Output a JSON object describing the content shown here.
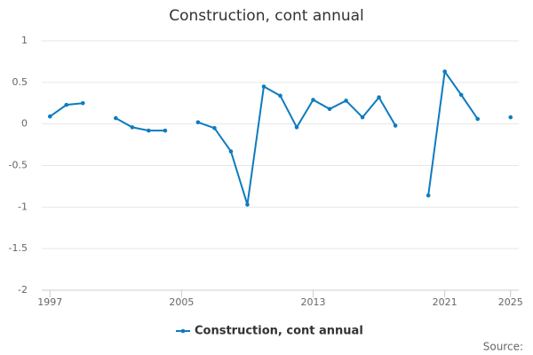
{
  "chart_data": {
    "type": "line",
    "title": "Construction, cont annual",
    "x": [
      1997,
      1998,
      1999,
      2000,
      2001,
      2002,
      2003,
      2004,
      2005,
      2006,
      2007,
      2008,
      2009,
      2010,
      2011,
      2012,
      2013,
      2014,
      2015,
      2016,
      2017,
      2018,
      2019,
      2020,
      2021,
      2022,
      2023,
      2024,
      2025
    ],
    "series": [
      {
        "name": "Construction, cont annual",
        "color": "#0e7bbf",
        "values": [
          0.09,
          0.23,
          0.25,
          null,
          0.07,
          -0.04,
          -0.08,
          -0.08,
          null,
          0.02,
          -0.05,
          -0.33,
          -0.97,
          0.45,
          0.34,
          -0.04,
          0.29,
          0.18,
          0.28,
          0.08,
          0.32,
          -0.02,
          null,
          -0.86,
          0.63,
          0.35,
          0.06,
          null,
          0.08
        ]
      }
    ],
    "xlim": [
      1996.5,
      2025.5
    ],
    "xticks": [
      1997,
      2005,
      2013,
      2021,
      2025
    ],
    "ylim": [
      -2,
      1
    ],
    "yticks": [
      1,
      0.5,
      0,
      -0.5,
      -1,
      -1.5,
      -2
    ],
    "grid": true,
    "legend": "bottom",
    "source": "Source:"
  }
}
